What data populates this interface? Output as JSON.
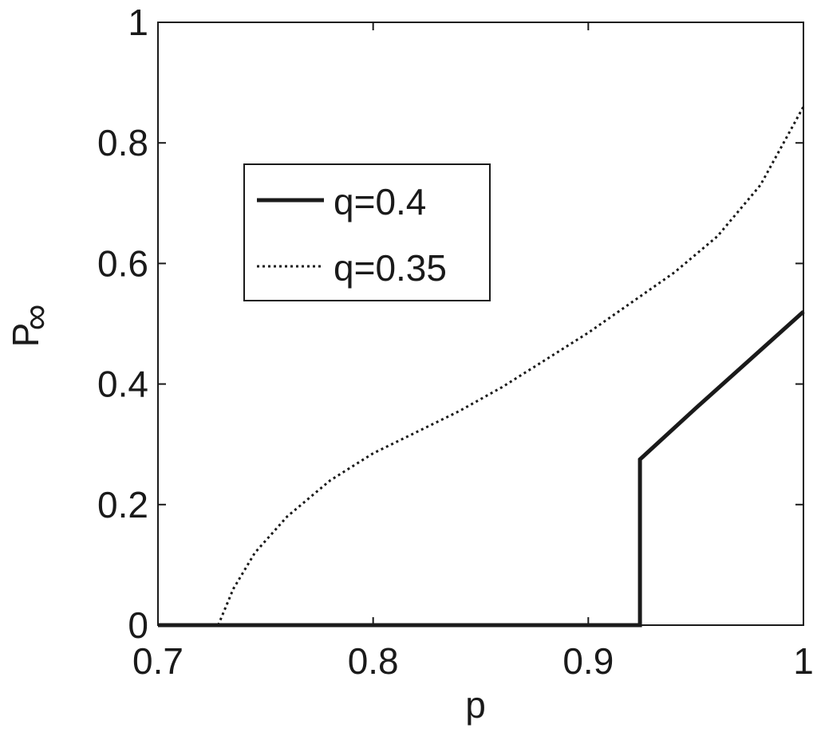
{
  "chart_data": {
    "type": "line",
    "xlabel": "p",
    "ylabel": "P",
    "ylabel_subscript": "∞",
    "xlim": [
      0.7,
      1.0
    ],
    "ylim": [
      0,
      1
    ],
    "x_ticks": [
      0.7,
      0.8,
      0.9,
      1.0
    ],
    "x_tick_labels": [
      "0.7",
      "0.8",
      "0.9",
      "1"
    ],
    "y_ticks": [
      0,
      0.2,
      0.4,
      0.6,
      0.8,
      1.0
    ],
    "y_tick_labels": [
      "0",
      "0.2",
      "0.4",
      "0.6",
      "0.8",
      "1"
    ],
    "grid": false,
    "legend_position": "upper-left",
    "series": [
      {
        "name": "q=0.4",
        "style": "solid",
        "color": "#1a1a1a",
        "x": [
          0.7,
          0.924,
          0.924,
          0.95,
          0.975,
          1.0
        ],
        "y": [
          0,
          0,
          0.275,
          0.36,
          0.44,
          0.52
        ]
      },
      {
        "name": "q=0.35",
        "style": "dotted",
        "color": "#1a1a1a",
        "x": [
          0.728,
          0.735,
          0.745,
          0.76,
          0.78,
          0.8,
          0.82,
          0.84,
          0.86,
          0.88,
          0.9,
          0.92,
          0.94,
          0.96,
          0.98,
          1.0
        ],
        "y": [
          0,
          0.06,
          0.12,
          0.18,
          0.24,
          0.285,
          0.32,
          0.355,
          0.395,
          0.44,
          0.485,
          0.535,
          0.585,
          0.645,
          0.73,
          0.86
        ]
      }
    ]
  }
}
